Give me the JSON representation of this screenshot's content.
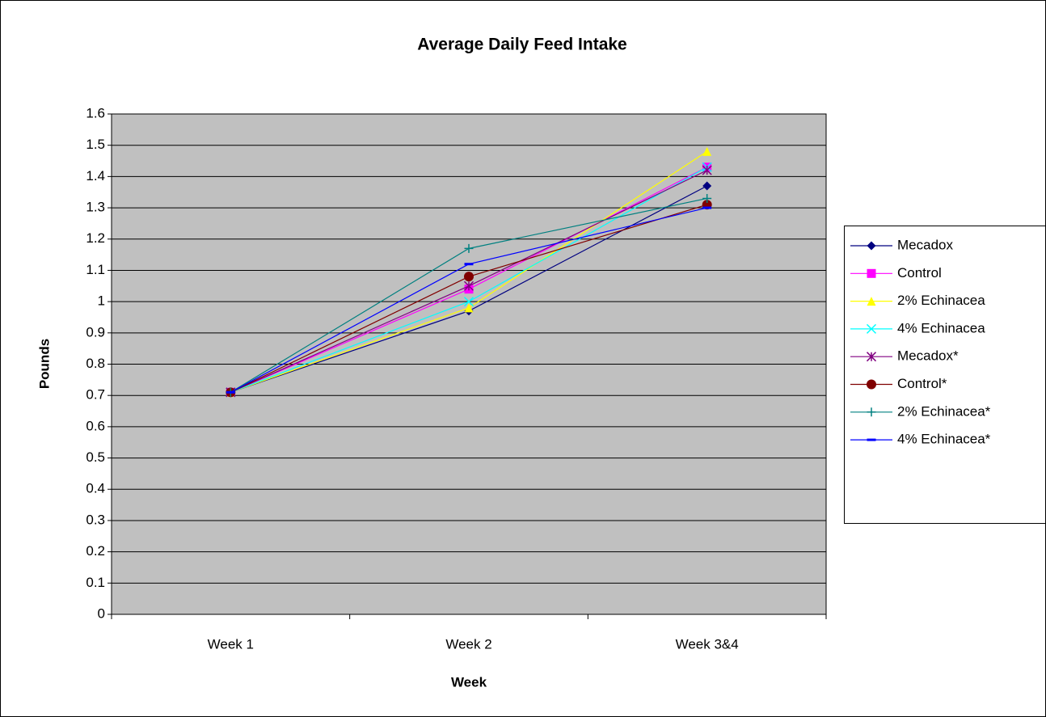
{
  "chart_data": {
    "type": "line",
    "title": "Average Daily Feed Intake",
    "x_label": "Week",
    "y_label": "Pounds",
    "categories": [
      "Week 1",
      "Week 2",
      "Week 3&4"
    ],
    "series": [
      {
        "name": "Mecadox",
        "color": "#000080",
        "marker": "diamond",
        "values": [
          0.71,
          0.97,
          1.37
        ]
      },
      {
        "name": "Control",
        "color": "#FF00FF",
        "marker": "square",
        "values": [
          0.71,
          1.04,
          1.43
        ]
      },
      {
        "name": "2% Echinacea",
        "color": "#FFFF00",
        "marker": "triangle",
        "values": [
          0.71,
          0.98,
          1.48
        ]
      },
      {
        "name": "4% Echinacea",
        "color": "#00FFFF",
        "marker": "x",
        "values": [
          0.71,
          1.0,
          1.43
        ]
      },
      {
        "name": "Mecadox*",
        "color": "#800080",
        "marker": "star",
        "values": [
          0.71,
          1.05,
          1.42
        ]
      },
      {
        "name": "Control*",
        "color": "#800000",
        "marker": "circle",
        "values": [
          0.71,
          1.08,
          1.31
        ]
      },
      {
        "name": "2% Echinacea*",
        "color": "#008080",
        "marker": "plus",
        "values": [
          0.71,
          1.17,
          1.33
        ]
      },
      {
        "name": "4% Echinacea*",
        "color": "#0000FF",
        "marker": "dash",
        "values": [
          0.71,
          1.12,
          1.3
        ]
      }
    ],
    "ylim": [
      0,
      1.6
    ],
    "yticks": [
      0,
      0.1,
      0.2,
      0.3,
      0.4,
      0.5,
      0.6,
      0.7,
      0.8,
      0.9,
      1,
      1.1,
      1.2,
      1.3,
      1.4,
      1.5,
      1.6
    ],
    "grid": true,
    "legend": "right"
  }
}
